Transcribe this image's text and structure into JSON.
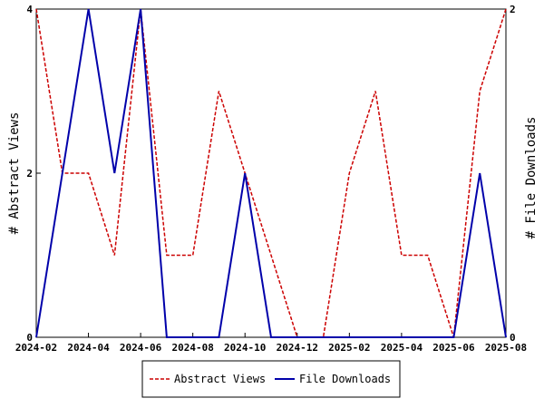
{
  "chart_data": {
    "type": "line",
    "x": [
      "2024-02",
      "2024-03",
      "2024-04",
      "2024-05",
      "2024-06",
      "2024-07",
      "2024-08",
      "2024-09",
      "2024-10",
      "2024-11",
      "2024-12",
      "2025-01",
      "2025-02",
      "2025-03",
      "2025-04",
      "2025-05",
      "2025-06",
      "2025-07",
      "2025-08"
    ],
    "x_tick_labels": [
      "2024-02",
      "2024-04",
      "2024-06",
      "2024-08",
      "2024-10",
      "2024-12",
      "2025-02",
      "2025-04",
      "2025-06",
      "2025-08"
    ],
    "series": [
      {
        "name": "Abstract Views",
        "axis": "left",
        "color": "#cc0000",
        "dash": "dashed",
        "values": [
          4,
          2,
          2,
          1,
          4,
          1,
          1,
          3,
          2,
          1,
          0,
          0,
          2,
          3,
          1,
          1,
          0,
          3,
          4
        ]
      },
      {
        "name": "File Downloads",
        "axis": "right",
        "color": "#0000aa",
        "dash": "solid",
        "values": [
          0,
          1,
          2,
          1,
          2,
          0,
          0,
          0,
          1,
          0,
          0,
          0,
          0,
          0,
          0,
          0,
          0,
          1,
          0
        ]
      }
    ],
    "ylabel": "# Abstract Views",
    "ylabel_right": "# File Downloads",
    "ylim": [
      0,
      4
    ],
    "ylim_right": [
      0,
      2
    ],
    "y_ticks": [
      0,
      2,
      4
    ],
    "y_ticks_right": [
      0,
      2
    ],
    "grid": false,
    "legend_position": "bottom"
  }
}
